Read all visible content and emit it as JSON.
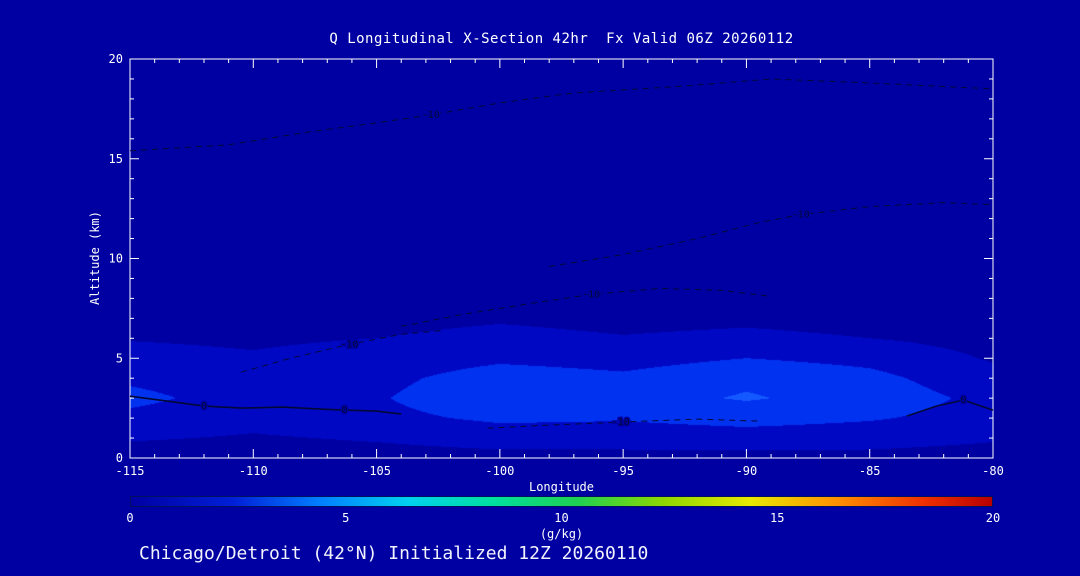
{
  "page": {
    "background": "#0000a2",
    "text_color": "#ffffff"
  },
  "chart_data": {
    "type": "heatmap",
    "title": "Q Longitudinal X-Section 42hr  Fx Valid 06Z 20260112",
    "caption": "Chicago/Detroit (42°N) Initialized 12Z 20260110",
    "xlabel": "Longitude",
    "ylabel": "Altitude (km)",
    "xlim": [
      -115,
      -80
    ],
    "ylim": [
      0,
      20
    ],
    "x_major_ticks": [
      -115,
      -110,
      -105,
      -100,
      -95,
      -90,
      -85,
      -80
    ],
    "x_minor_step": 1,
    "y_major_ticks": [
      0,
      5,
      10,
      15,
      20
    ],
    "y_minor_step": 1,
    "units": "g/kg",
    "band_interval": 1,
    "band_colors": [
      "#0000a2",
      "#0008c4",
      "#0032f0",
      "#1458ff"
    ],
    "contour_color": "#000838",
    "grid": {
      "longitudes": [
        -115,
        -110,
        -105,
        -100,
        -95,
        -90,
        -85,
        -80
      ],
      "altitudes_km": [
        0,
        1,
        2,
        3,
        4,
        5,
        6,
        8,
        10,
        14,
        20
      ],
      "q_gkg": [
        [
          0.5,
          0.5,
          0.6,
          0.7,
          0.7,
          0.7,
          0.7,
          0.6
        ],
        [
          1.1,
          0.9,
          1.1,
          1.4,
          1.4,
          1.5,
          1.4,
          1.1
        ],
        [
          1.7,
          1.3,
          1.7,
          2.2,
          2.1,
          2.4,
          2.1,
          1.6
        ],
        [
          2.3,
          1.5,
          1.9,
          2.8,
          2.6,
          3.1,
          2.6,
          1.7
        ],
        [
          1.8,
          1.4,
          1.7,
          2.5,
          2.2,
          2.8,
          2.3,
          1.3
        ],
        [
          1.3,
          1.1,
          1.4,
          1.8,
          1.6,
          2.0,
          1.7,
          0.9
        ],
        [
          0.95,
          0.85,
          1.0,
          1.25,
          1.05,
          1.2,
          1.0,
          0.65
        ],
        [
          0.45,
          0.4,
          0.5,
          0.55,
          0.45,
          0.45,
          0.4,
          0.3
        ],
        [
          0.22,
          0.2,
          0.22,
          0.25,
          0.22,
          0.2,
          0.2,
          0.15
        ],
        [
          0.06,
          0.06,
          0.06,
          0.06,
          0.06,
          0.06,
          0.06,
          0.05
        ],
        [
          0.01,
          0.01,
          0.01,
          0.01,
          0.01,
          0.01,
          0.01,
          0.01
        ]
      ]
    },
    "contour_lines": [
      {
        "label": "-10",
        "style": "dashed",
        "points": [
          [
            -115,
            15.4
          ],
          [
            -111,
            15.7
          ],
          [
            -108,
            16.3
          ],
          [
            -105,
            16.8
          ],
          [
            -102.8,
            17.2
          ],
          [
            -100,
            17.8
          ],
          [
            -97,
            18.3
          ],
          [
            -93,
            18.6
          ],
          [
            -89,
            19.0
          ],
          [
            -85,
            18.8
          ],
          [
            -80,
            18.5
          ]
        ],
        "labels": [
          [
            -102.8,
            17.2
          ]
        ]
      },
      {
        "label": "-10",
        "style": "dashed",
        "points": [
          [
            -98,
            9.6
          ],
          [
            -95,
            10.2
          ],
          [
            -92,
            11.0
          ],
          [
            -89.5,
            11.8
          ],
          [
            -87.8,
            12.2
          ],
          [
            -85,
            12.6
          ],
          [
            -82,
            12.8
          ],
          [
            -80,
            12.7
          ]
        ],
        "labels": [
          [
            -87.8,
            12.2
          ]
        ]
      },
      {
        "label": "-10",
        "style": "dashed",
        "points": [
          [
            -104,
            6.6
          ],
          [
            -101.5,
            7.2
          ],
          [
            -99,
            7.7
          ],
          [
            -96.3,
            8.2
          ],
          [
            -93.5,
            8.5
          ],
          [
            -91,
            8.4
          ],
          [
            -89,
            8.1
          ]
        ],
        "labels": [
          [
            -96.3,
            8.2
          ]
        ]
      },
      {
        "label": "-10",
        "style": "dashed",
        "points": [
          [
            -110.5,
            4.3
          ],
          [
            -108.5,
            5.0
          ],
          [
            -106.1,
            5.7
          ],
          [
            -104,
            6.2
          ],
          [
            -102.3,
            6.4
          ]
        ],
        "labels": [
          [
            -106.1,
            5.7
          ]
        ]
      },
      {
        "label": "-10",
        "style": "dashed",
        "points": [
          [
            -100.5,
            1.5
          ],
          [
            -98,
            1.65
          ],
          [
            -95.1,
            1.8
          ],
          [
            -92,
            1.95
          ],
          [
            -89.5,
            1.85
          ]
        ],
        "labels": [
          [
            -95.1,
            1.8
          ]
        ]
      },
      {
        "label": "0",
        "style": "solid",
        "points": [
          [
            -115,
            3.1
          ],
          [
            -113.5,
            2.85
          ],
          [
            -112,
            2.6
          ],
          [
            -110.5,
            2.5
          ],
          [
            -108.8,
            2.55
          ],
          [
            -107.3,
            2.45
          ],
          [
            -106.3,
            2.4
          ],
          [
            -105,
            2.35
          ],
          [
            -104,
            2.2
          ]
        ],
        "labels": [
          [
            -112,
            2.6
          ],
          [
            -106.3,
            2.4
          ]
        ]
      },
      {
        "label": "0",
        "style": "solid",
        "points": [
          [
            -83.5,
            2.1
          ],
          [
            -82.3,
            2.6
          ],
          [
            -81.2,
            2.9
          ],
          [
            -80,
            2.4
          ]
        ],
        "labels": [
          [
            -81.2,
            2.9
          ]
        ]
      }
    ],
    "colorbar": {
      "min": 0,
      "max": 20,
      "ticks": [
        0,
        5,
        10,
        15,
        20
      ],
      "label": "(g/kg)",
      "gradient": [
        {
          "pos": 0.0,
          "color": "#0000a2"
        },
        {
          "pos": 0.12,
          "color": "#0020d8"
        },
        {
          "pos": 0.22,
          "color": "#0080ff"
        },
        {
          "pos": 0.32,
          "color": "#00d0f0"
        },
        {
          "pos": 0.42,
          "color": "#00e0a0"
        },
        {
          "pos": 0.52,
          "color": "#20d050"
        },
        {
          "pos": 0.62,
          "color": "#90d800"
        },
        {
          "pos": 0.72,
          "color": "#e8e800"
        },
        {
          "pos": 0.82,
          "color": "#ff9000"
        },
        {
          "pos": 0.92,
          "color": "#f03000"
        },
        {
          "pos": 1.0,
          "color": "#b80000"
        }
      ]
    }
  }
}
